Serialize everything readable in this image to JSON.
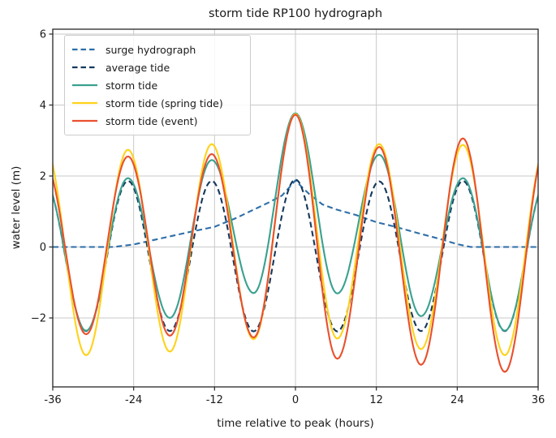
{
  "figure": {
    "title": "storm tide RP100 hydrograph",
    "xlabel": "time relative to peak (hours)",
    "ylabel": "water level (m)"
  },
  "axes": {
    "x_tick_labels": [
      "-36",
      "-24",
      "-12",
      "0",
      "12",
      "24",
      "36"
    ],
    "y_tick_labels": [
      "6",
      "4",
      "2",
      "0",
      "−2"
    ],
    "x_tick_values": [
      -36,
      -24,
      -12,
      0,
      12,
      24,
      36
    ],
    "y_tick_values": [
      6,
      4,
      2,
      0,
      -2
    ]
  },
  "colors": {
    "background": "#ffffff",
    "grid": "#c9c9c9",
    "spine": "#262626",
    "text": "#1a1a1a",
    "surge": "#2d6ea8",
    "average_tide": "#14395d",
    "storm_tide": "#3aa18f",
    "storm_tide_spring": "#ffd21a",
    "storm_tide_event": "#e9502e"
  },
  "chart_data": {
    "type": "line",
    "title": "storm tide RP100 hydrograph",
    "xlabel": "time relative to peak (hours)",
    "ylabel": "water level (m)",
    "xlim": [
      -36,
      36
    ],
    "ylim": [
      -3.95,
      6.14
    ],
    "grid": true,
    "legend_position": "upper left",
    "x_ticks": [
      -36,
      -24,
      -12,
      0,
      12,
      24,
      36
    ],
    "y_ticks": [
      6,
      4,
      2,
      0,
      -2
    ],
    "series": [
      {
        "name": "surge hydrograph",
        "color": "#2d6ea8",
        "line_style": "dashed",
        "interp": "linear",
        "points": [
          [
            -36,
            0
          ],
          [
            -27,
            0
          ],
          [
            -24,
            0.07
          ],
          [
            -20,
            0.24
          ],
          [
            -16,
            0.41
          ],
          [
            -12,
            0.57
          ],
          [
            -9,
            0.8
          ],
          [
            -6,
            1.07
          ],
          [
            -4,
            1.25
          ],
          [
            -2,
            1.45
          ],
          [
            -1,
            1.66
          ],
          [
            0,
            1.88
          ],
          [
            1,
            1.68
          ],
          [
            2,
            1.5
          ],
          [
            4,
            1.2
          ],
          [
            6,
            1.06
          ],
          [
            9,
            0.9
          ],
          [
            12,
            0.7
          ],
          [
            15,
            0.56
          ],
          [
            18,
            0.4
          ],
          [
            21,
            0.25
          ],
          [
            24,
            0.08
          ],
          [
            26,
            0
          ],
          [
            36,
            0
          ]
        ]
      },
      {
        "name": "average tide",
        "color": "#14395d",
        "line_style": "dashed",
        "interp": "cosine",
        "points": [
          [
            -37.26,
            1.86
          ],
          [
            -31.05,
            -2.37
          ],
          [
            -24.84,
            1.86
          ],
          [
            -18.63,
            -2.37
          ],
          [
            -12.42,
            1.86
          ],
          [
            -6.21,
            -2.38
          ],
          [
            0,
            1.9
          ],
          [
            6.21,
            -2.38
          ],
          [
            12.42,
            1.85
          ],
          [
            18.63,
            -2.37
          ],
          [
            24.84,
            1.86
          ],
          [
            31.05,
            -2.37
          ],
          [
            37.26,
            1.86
          ]
        ]
      },
      {
        "name": "storm tide",
        "color": "#3aa18f",
        "line_style": "solid",
        "interp": "cosine",
        "points": [
          [
            -37.26,
            1.86
          ],
          [
            -31.05,
            -2.36
          ],
          [
            -24.84,
            1.94
          ],
          [
            -18.63,
            -2.0
          ],
          [
            -12.42,
            2.45
          ],
          [
            -6.21,
            -1.3
          ],
          [
            0,
            3.77
          ],
          [
            6.21,
            -1.31
          ],
          [
            12.42,
            2.6
          ],
          [
            18.63,
            -1.95
          ],
          [
            24.84,
            1.94
          ],
          [
            31.05,
            -2.36
          ],
          [
            37.26,
            1.86
          ]
        ]
      },
      {
        "name": "storm tide (spring tide)",
        "color": "#ffd21a",
        "line_style": "solid",
        "interp": "cosine",
        "points": [
          [
            -37.26,
            2.9
          ],
          [
            -31.05,
            -3.05
          ],
          [
            -24.84,
            2.74
          ],
          [
            -18.63,
            -2.95
          ],
          [
            -12.42,
            2.9
          ],
          [
            -6.21,
            -2.6
          ],
          [
            0,
            3.75
          ],
          [
            6.21,
            -2.58
          ],
          [
            12.42,
            2.9
          ],
          [
            18.63,
            -2.88
          ],
          [
            24.84,
            2.88
          ],
          [
            31.05,
            -3.05
          ],
          [
            37.26,
            2.9
          ]
        ]
      },
      {
        "name": "storm tide (event)",
        "color": "#e9502e",
        "line_style": "solid",
        "interp": "cosine",
        "points": [
          [
            -37.26,
            2.4
          ],
          [
            -31.05,
            -2.46
          ],
          [
            -24.84,
            2.55
          ],
          [
            -18.63,
            -2.5
          ],
          [
            -12.42,
            2.62
          ],
          [
            -6.21,
            -2.55
          ],
          [
            0,
            3.73
          ],
          [
            6.21,
            -3.15
          ],
          [
            12.42,
            2.82
          ],
          [
            18.63,
            -3.32
          ],
          [
            24.84,
            3.06
          ],
          [
            31.05,
            -3.52
          ],
          [
            37.26,
            2.9
          ]
        ]
      }
    ]
  },
  "legend": {
    "entries": [
      {
        "label": "surge hydrograph"
      },
      {
        "label": "average tide"
      },
      {
        "label": "storm tide"
      },
      {
        "label": "storm tide (spring tide)"
      },
      {
        "label": "storm tide (event)"
      }
    ]
  }
}
